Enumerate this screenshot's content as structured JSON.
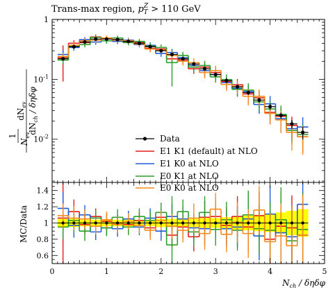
{
  "chart_data": [
    {
      "type": "line",
      "title": "Trans-max region, p_T^Z > 110 GeV",
      "title_parts": {
        "text": "Trans-max region, ",
        "symbol": "p",
        "sub": "T",
        "sup": "Z",
        "rest": " > 110 GeV"
      },
      "ylabel": "1/N_ev dN_ev/dN_ch/δηδφ",
      "ylabel_parts": {
        "frac1_num": "1",
        "frac1_den": "N",
        "frac1_den_sub": "ev",
        "frac2_num": "dN",
        "frac2_num_sub": "ev",
        "frac2_den": "dN",
        "frac2_den_sub": "ch",
        "frac2_den_rest": " / δηδφ"
      },
      "yscale": "log",
      "ylim": [
        0.0019,
        1
      ],
      "yticks": [
        {
          "v": 1,
          "label": "1"
        },
        {
          "v": 0.1,
          "label": "10^-1"
        },
        {
          "v": 0.01,
          "label": "10^-2"
        }
      ],
      "xlim": [
        0,
        5
      ],
      "edges": [
        0.1,
        0.3,
        0.5,
        0.7,
        0.9,
        1.1,
        1.3,
        1.5,
        1.7,
        1.9,
        2.1,
        2.3,
        2.5,
        2.7,
        2.9,
        3.1,
        3.3,
        3.5,
        3.7,
        3.9,
        4.1,
        4.3,
        4.5,
        4.7
      ],
      "series": [
        {
          "name": "Data",
          "kind": "points",
          "color": "#000000",
          "values": [
            0.22,
            0.35,
            0.42,
            0.47,
            0.47,
            0.46,
            0.43,
            0.4,
            0.35,
            0.3,
            0.26,
            0.22,
            0.18,
            0.15,
            0.12,
            0.095,
            0.075,
            0.06,
            0.045,
            0.035,
            0.025,
            0.018,
            0.013
          ],
          "err": [
            0.01,
            0.01,
            0.01,
            0.01,
            0.01,
            0.01,
            0.01,
            0.01,
            0.01,
            0.01,
            0.01,
            0.01,
            0.01,
            0.01,
            0.01,
            0.008,
            0.006,
            0.005,
            0.004,
            0.004,
            0.003,
            0.003,
            0.003
          ]
        },
        {
          "name": "E1 K1 (default) at NLO",
          "kind": "step",
          "color": "#e41a1c",
          "values": [
            0.23,
            0.4,
            0.41,
            0.51,
            0.48,
            0.46,
            0.42,
            0.41,
            0.33,
            0.32,
            0.22,
            0.21,
            0.15,
            0.16,
            0.13,
            0.092,
            0.081,
            0.057,
            0.049,
            0.028,
            0.024,
            0.017,
            0.011
          ],
          "err_rel": [
            0.6,
            0.12,
            0.1,
            0.1,
            0.1,
            0.1,
            0.1,
            0.1,
            0.12,
            0.12,
            0.15,
            0.15,
            0.18,
            0.2,
            0.2,
            0.22,
            0.25,
            0.3,
            0.3,
            0.35,
            0.4,
            0.4,
            0.45
          ]
        },
        {
          "name": "E1 K0 at NLO",
          "kind": "step",
          "color": "#1f5bd6",
          "values": [
            0.26,
            0.34,
            0.46,
            0.42,
            0.44,
            0.43,
            0.45,
            0.38,
            0.37,
            0.27,
            0.28,
            0.23,
            0.17,
            0.14,
            0.12,
            0.088,
            0.071,
            0.063,
            0.038,
            0.039,
            0.022,
            0.015,
            0.016
          ],
          "err_rel": [
            0.2,
            0.12,
            0.1,
            0.1,
            0.1,
            0.1,
            0.1,
            0.1,
            0.12,
            0.12,
            0.15,
            0.15,
            0.18,
            0.2,
            0.2,
            0.22,
            0.25,
            0.3,
            0.3,
            0.35,
            0.4,
            0.4,
            0.45
          ]
        },
        {
          "name": "E0 K1 at NLO",
          "kind": "step",
          "color": "#2a9d2a",
          "values": [
            0.21,
            0.36,
            0.38,
            0.5,
            0.44,
            0.49,
            0.41,
            0.43,
            0.36,
            0.34,
            0.19,
            0.25,
            0.16,
            0.17,
            0.11,
            0.099,
            0.068,
            0.066,
            0.042,
            0.032,
            0.026,
            0.014,
            0.012
          ],
          "err_rel": [
            0.15,
            0.12,
            0.1,
            0.1,
            0.1,
            0.1,
            0.1,
            0.1,
            0.12,
            0.12,
            0.6,
            0.15,
            0.18,
            0.2,
            0.2,
            0.22,
            0.25,
            0.3,
            0.3,
            0.35,
            0.4,
            0.4,
            0.45
          ]
        },
        {
          "name": "E0 K0 at NLO",
          "kind": "step",
          "color": "#f58a1f",
          "values": [
            0.24,
            0.37,
            0.44,
            0.45,
            0.49,
            0.45,
            0.44,
            0.39,
            0.32,
            0.31,
            0.25,
            0.2,
            0.19,
            0.13,
            0.14,
            0.082,
            0.076,
            0.052,
            0.052,
            0.027,
            0.021,
            0.013,
            0.011
          ],
          "err_rel": [
            0.15,
            0.12,
            0.1,
            0.1,
            0.1,
            0.1,
            0.1,
            0.1,
            0.12,
            0.12,
            0.15,
            0.15,
            0.18,
            0.2,
            0.2,
            0.22,
            0.25,
            0.3,
            0.3,
            0.35,
            0.4,
            0.5,
            0.5
          ]
        }
      ],
      "legend_placement": "bottom-center"
    },
    {
      "type": "line",
      "ylabel": "MC/Data",
      "xlabel": "N_ch / δηδφ",
      "xlabel_parts": {
        "text": "N",
        "sub": "ch",
        "rest": " / δηδφ"
      },
      "ylim": [
        0.5,
        1.5
      ],
      "yticks": [
        0.6,
        0.8,
        1.0,
        1.2,
        1.4
      ],
      "ytick_labels": [
        "0.6",
        "0.8",
        "1",
        "1.2",
        "1.4"
      ],
      "xlim": [
        0,
        5
      ],
      "xticks": [
        0,
        1,
        2,
        3,
        4,
        5
      ],
      "xtick_labels": [
        "0",
        "1",
        "2",
        "3",
        "4",
        "5"
      ],
      "band_color": "#ffff00",
      "band_halfwidth": [
        0.05,
        0.05,
        0.04,
        0.04,
        0.04,
        0.04,
        0.04,
        0.04,
        0.04,
        0.05,
        0.05,
        0.05,
        0.05,
        0.06,
        0.06,
        0.07,
        0.08,
        0.09,
        0.1,
        0.11,
        0.13,
        0.15,
        0.17
      ],
      "series": [
        {
          "name": "E1 K1 (default) at NLO",
          "color": "#e41a1c",
          "values": [
            1.06,
            1.14,
            0.98,
            1.08,
            1.02,
            1.0,
            0.98,
            1.03,
            0.94,
            1.07,
            0.85,
            0.95,
            0.83,
            1.07,
            1.08,
            0.97,
            1.08,
            0.95,
            1.09,
            0.8,
            0.96,
            0.94,
            0.85
          ],
          "err": [
            0.6,
            0.15,
            0.12,
            0.1,
            0.1,
            0.1,
            0.1,
            0.1,
            0.12,
            0.12,
            0.15,
            0.15,
            0.18,
            0.2,
            0.2,
            0.22,
            0.25,
            0.3,
            0.3,
            0.35,
            0.4,
            0.4,
            0.45
          ]
        },
        {
          "name": "E1 K0 at NLO",
          "color": "#1f5bd6",
          "values": [
            1.18,
            0.97,
            1.1,
            0.89,
            0.94,
            0.93,
            1.05,
            0.95,
            1.06,
            0.9,
            1.08,
            1.05,
            0.94,
            0.93,
            1.0,
            0.93,
            0.95,
            1.05,
            0.84,
            1.11,
            0.88,
            0.83,
            1.23
          ],
          "err": [
            0.2,
            0.15,
            0.12,
            0.1,
            0.1,
            0.1,
            0.1,
            0.1,
            0.12,
            0.12,
            0.15,
            0.15,
            0.18,
            0.2,
            0.2,
            0.22,
            0.25,
            0.3,
            0.3,
            0.35,
            0.4,
            0.4,
            0.45
          ]
        },
        {
          "name": "E0 K1 at NLO",
          "color": "#2a9d2a",
          "values": [
            0.95,
            1.03,
            0.9,
            1.06,
            0.94,
            1.07,
            0.95,
            1.08,
            1.03,
            1.13,
            0.73,
            1.14,
            0.89,
            1.13,
            0.92,
            1.04,
            0.91,
            1.1,
            0.93,
            0.91,
            1.04,
            0.78,
            0.92
          ],
          "err": [
            0.15,
            0.15,
            0.12,
            0.1,
            0.1,
            0.1,
            0.1,
            0.1,
            0.12,
            0.12,
            0.6,
            0.15,
            0.18,
            0.2,
            0.2,
            0.22,
            0.25,
            0.3,
            0.3,
            0.35,
            0.4,
            0.4,
            0.45
          ]
        },
        {
          "name": "E0 K0 at NLO",
          "color": "#f58a1f",
          "values": [
            1.09,
            1.06,
            1.05,
            0.96,
            1.04,
            0.98,
            1.02,
            0.97,
            0.91,
            1.03,
            0.96,
            0.91,
            1.06,
            0.87,
            1.17,
            0.86,
            1.01,
            0.87,
            1.16,
            0.77,
            0.84,
            0.72,
            0.85
          ],
          "err": [
            0.15,
            0.15,
            0.12,
            0.1,
            0.1,
            0.1,
            0.1,
            0.1,
            0.12,
            0.12,
            0.15,
            0.15,
            0.18,
            0.2,
            0.2,
            0.22,
            0.25,
            0.3,
            0.3,
            0.35,
            0.4,
            0.5,
            0.5
          ]
        }
      ]
    }
  ]
}
